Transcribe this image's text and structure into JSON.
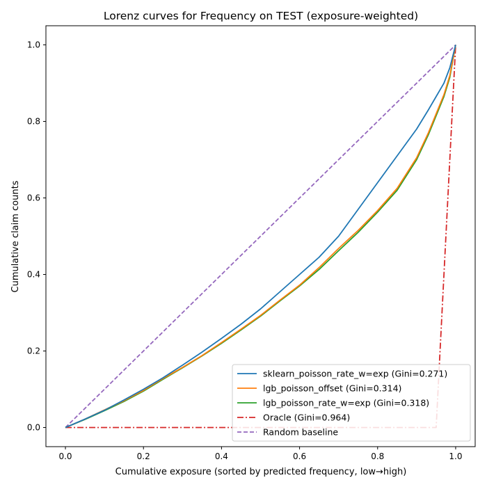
{
  "chart_data": {
    "type": "line",
    "title": "Lorenz curves for Frequency on TEST (exposure-weighted)",
    "xlabel": "Cumulative exposure (sorted by predicted frequency, low→high)",
    "ylabel": "Cumulative claim counts",
    "xlim": [
      -0.05,
      1.05
    ],
    "ylim": [
      -0.05,
      1.05
    ],
    "xticks": [
      "0.0",
      "0.2",
      "0.4",
      "0.6",
      "0.8",
      "1.0"
    ],
    "yticks": [
      "0.0",
      "0.2",
      "0.4",
      "0.6",
      "0.8",
      "1.0"
    ],
    "grid": false,
    "legend_position": "lower-right",
    "series": [
      {
        "name": "sklearn_poisson_rate_w=exp (Gini=0.271)",
        "color": "#1f77b4",
        "style": "solid",
        "points": [
          [
            0,
            0
          ],
          [
            0.05,
            0.022
          ],
          [
            0.1,
            0.045
          ],
          [
            0.15,
            0.072
          ],
          [
            0.2,
            0.1
          ],
          [
            0.25,
            0.13
          ],
          [
            0.3,
            0.163
          ],
          [
            0.35,
            0.197
          ],
          [
            0.4,
            0.233
          ],
          [
            0.45,
            0.27
          ],
          [
            0.5,
            0.31
          ],
          [
            0.55,
            0.355
          ],
          [
            0.6,
            0.4
          ],
          [
            0.65,
            0.445
          ],
          [
            0.7,
            0.5
          ],
          [
            0.75,
            0.57
          ],
          [
            0.8,
            0.64
          ],
          [
            0.85,
            0.71
          ],
          [
            0.9,
            0.78
          ],
          [
            0.93,
            0.83
          ],
          [
            0.95,
            0.865
          ],
          [
            0.97,
            0.9
          ],
          [
            0.985,
            0.94
          ],
          [
            1.0,
            1.0
          ]
        ]
      },
      {
        "name": "lgb_poisson_offset (Gini=0.314)",
        "color": "#ff7f0e",
        "style": "solid",
        "points": [
          [
            0,
            0
          ],
          [
            0.05,
            0.022
          ],
          [
            0.1,
            0.046
          ],
          [
            0.15,
            0.07
          ],
          [
            0.2,
            0.097
          ],
          [
            0.25,
            0.128
          ],
          [
            0.3,
            0.157
          ],
          [
            0.35,
            0.188
          ],
          [
            0.4,
            0.222
          ],
          [
            0.45,
            0.257
          ],
          [
            0.5,
            0.293
          ],
          [
            0.55,
            0.333
          ],
          [
            0.6,
            0.372
          ],
          [
            0.65,
            0.418
          ],
          [
            0.7,
            0.468
          ],
          [
            0.75,
            0.515
          ],
          [
            0.8,
            0.567
          ],
          [
            0.85,
            0.625
          ],
          [
            0.9,
            0.705
          ],
          [
            0.93,
            0.77
          ],
          [
            0.95,
            0.82
          ],
          [
            0.97,
            0.87
          ],
          [
            0.985,
            0.92
          ],
          [
            1.0,
            1.0
          ]
        ]
      },
      {
        "name": "lgb_poisson_rate_w=exp (Gini=0.318)",
        "color": "#2ca02c",
        "style": "solid",
        "points": [
          [
            0,
            0
          ],
          [
            0.05,
            0.021
          ],
          [
            0.1,
            0.044
          ],
          [
            0.15,
            0.068
          ],
          [
            0.2,
            0.095
          ],
          [
            0.25,
            0.126
          ],
          [
            0.3,
            0.156
          ],
          [
            0.35,
            0.187
          ],
          [
            0.4,
            0.22
          ],
          [
            0.45,
            0.255
          ],
          [
            0.5,
            0.291
          ],
          [
            0.55,
            0.331
          ],
          [
            0.6,
            0.37
          ],
          [
            0.65,
            0.413
          ],
          [
            0.7,
            0.462
          ],
          [
            0.75,
            0.51
          ],
          [
            0.8,
            0.563
          ],
          [
            0.85,
            0.62
          ],
          [
            0.9,
            0.7
          ],
          [
            0.93,
            0.765
          ],
          [
            0.95,
            0.815
          ],
          [
            0.97,
            0.865
          ],
          [
            0.985,
            0.915
          ],
          [
            1.0,
            1.0
          ]
        ]
      },
      {
        "name": "Oracle (Gini=0.964)",
        "color": "#d62728",
        "style": "dashdot",
        "points": [
          [
            0,
            0
          ],
          [
            0.95,
            0.0
          ],
          [
            1.0,
            1.0
          ]
        ]
      },
      {
        "name": "Random baseline",
        "color": "#9467bd",
        "style": "dashed",
        "points": [
          [
            0,
            0
          ],
          [
            1.0,
            1.0
          ]
        ]
      }
    ]
  }
}
